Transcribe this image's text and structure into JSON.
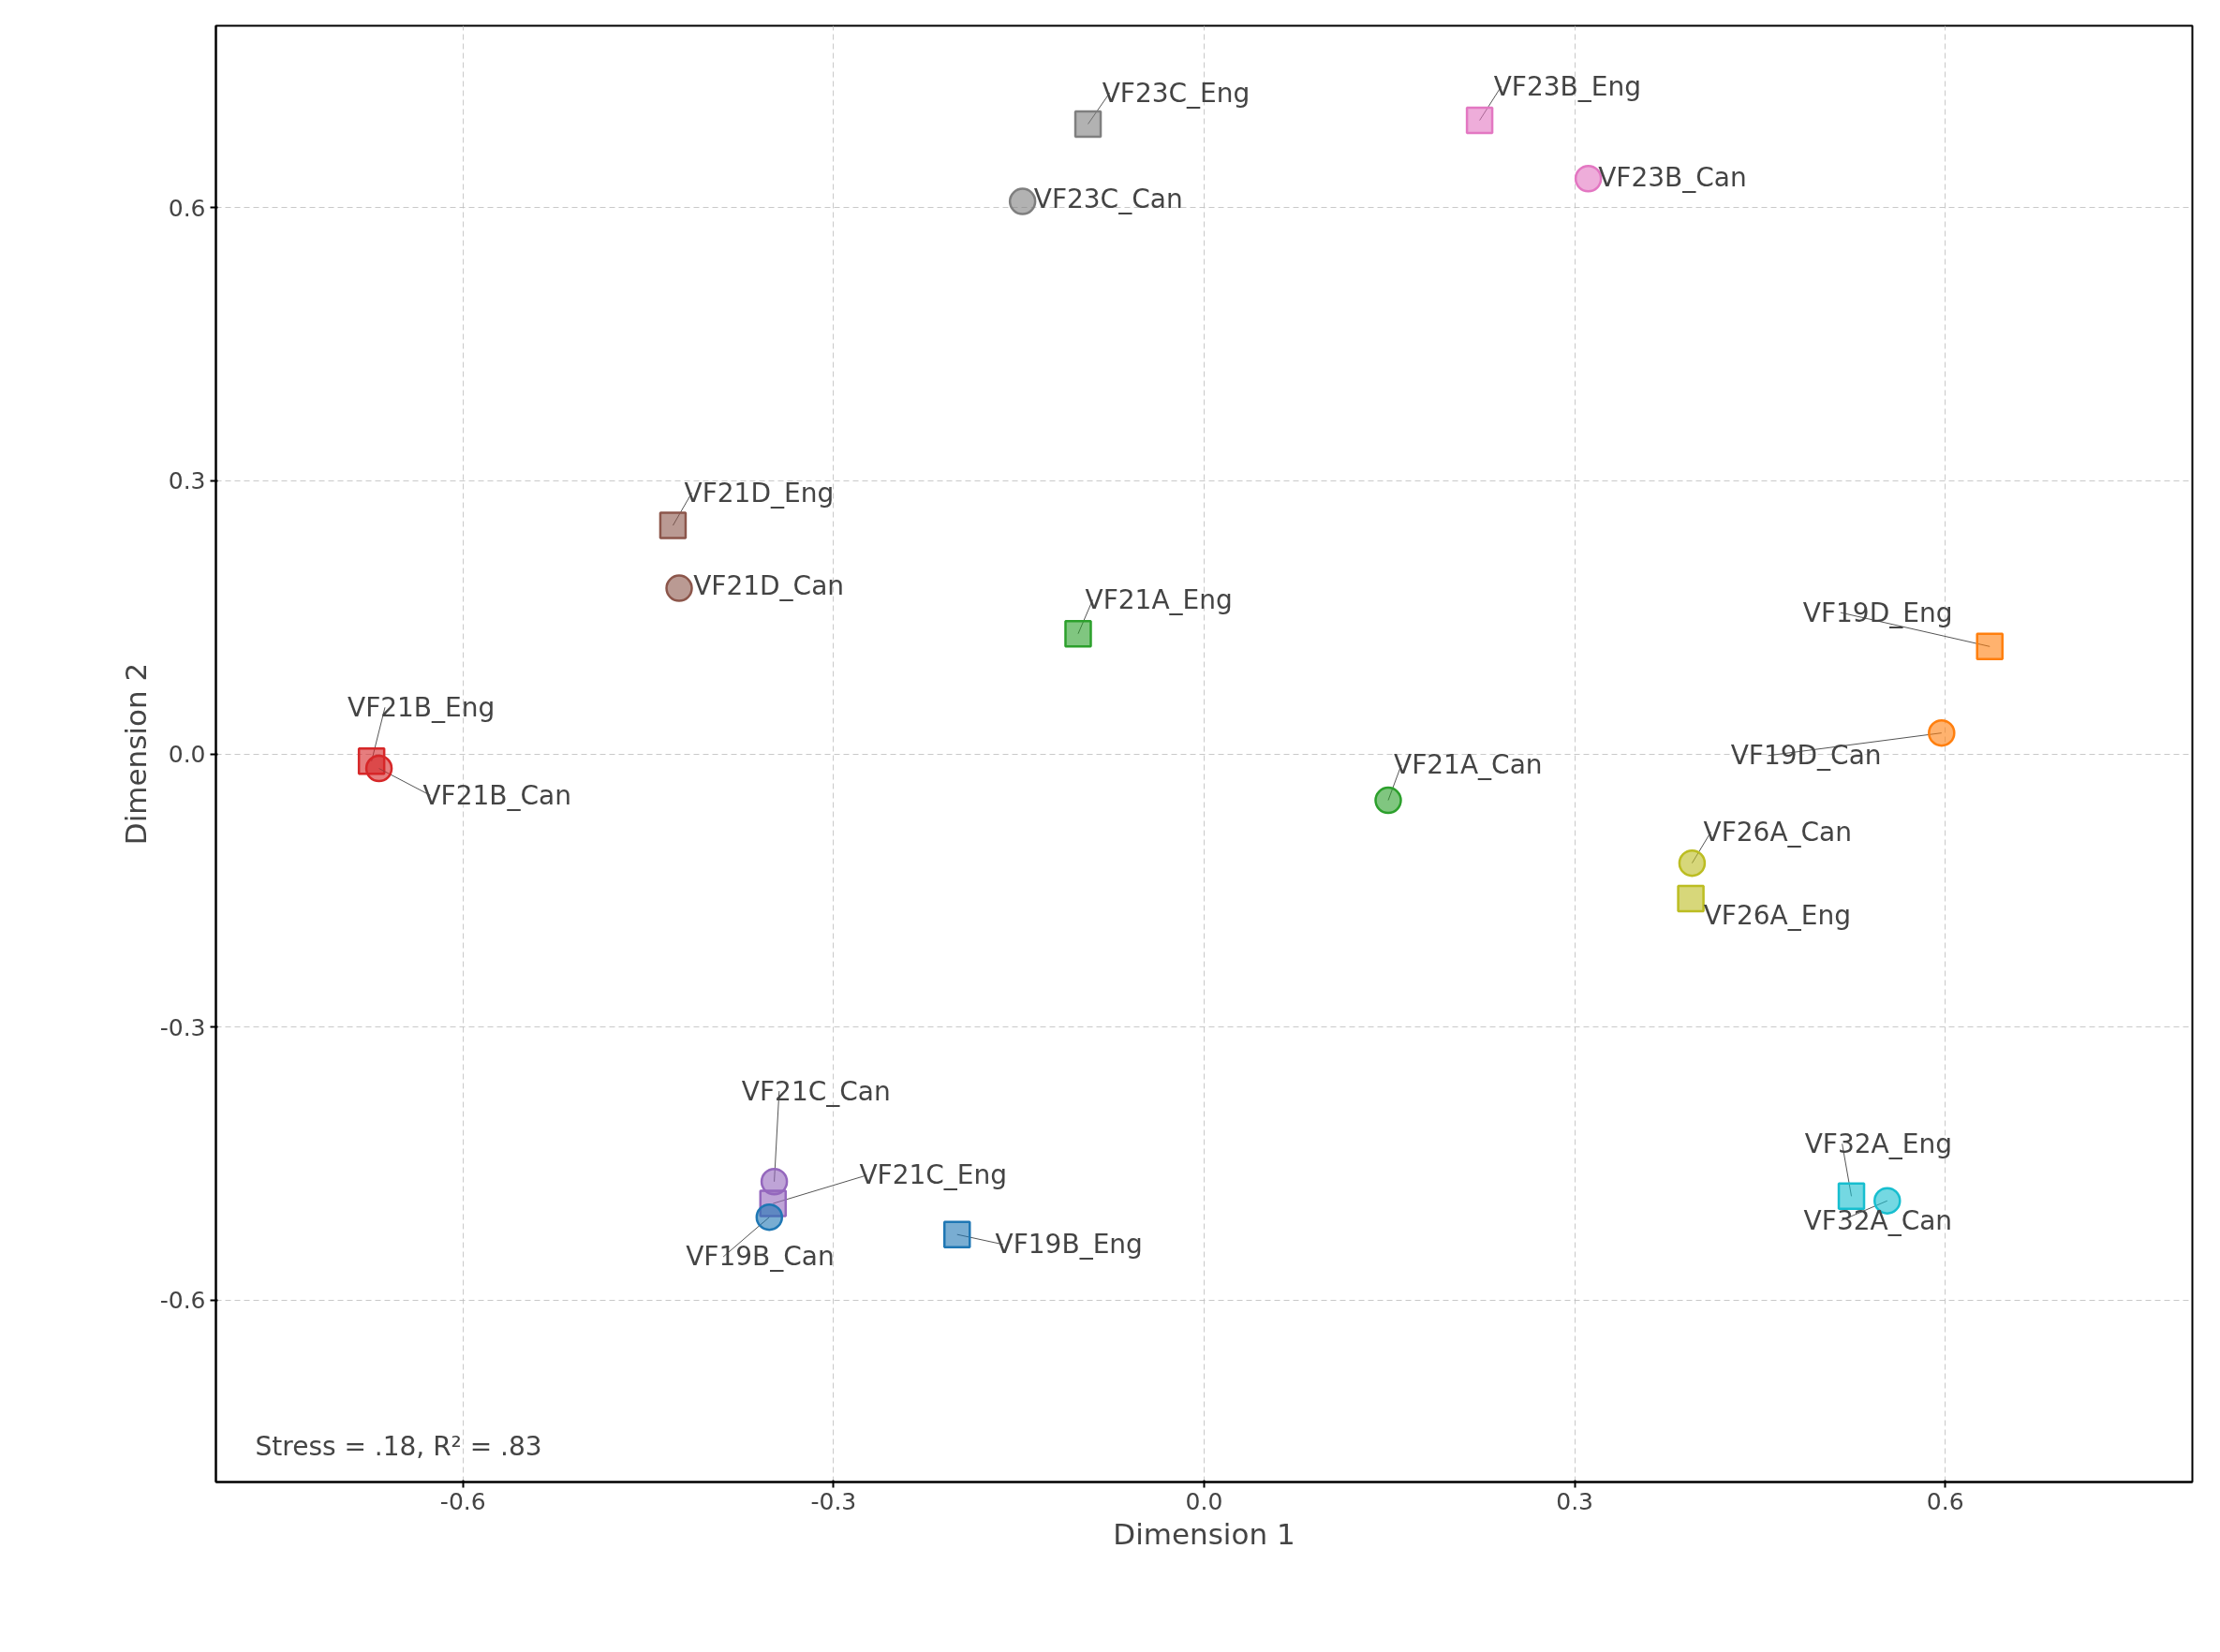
{
  "chart_data": {
    "type": "scatter",
    "xlabel": "Dimension 1",
    "ylabel": "Dimension 2",
    "xlim": [
      -0.8,
      0.8
    ],
    "ylim": [
      -0.8,
      0.8
    ],
    "xticks": [
      -0.6,
      -0.3,
      {
        "value": 0,
        "label": "0.0"
      },
      0.3,
      0.6
    ],
    "yticks": [
      -0.6,
      -0.3,
      {
        "value": 0,
        "label": "0.0"
      },
      0.3,
      0.6
    ],
    "grid": true,
    "annotations": [
      "Stress = .18, R² = .83"
    ],
    "series": [
      {
        "name": "VF23C_Eng",
        "color": "#7f7f7f",
        "marker": "square",
        "x": [
          -0.094
        ],
        "values": [
          0.692
        ]
      },
      {
        "name": "VF23C_Can",
        "color": "#7f7f7f",
        "marker": "circle",
        "x": [
          -0.147
        ],
        "values": [
          0.607
        ]
      },
      {
        "name": "VF23B_Eng",
        "color": "#e377c2",
        "marker": "square",
        "x": [
          0.223
        ],
        "values": [
          0.696
        ]
      },
      {
        "name": "VF23B_Can",
        "color": "#e377c2",
        "marker": "circle",
        "x": [
          0.311
        ],
        "values": [
          0.632
        ]
      },
      {
        "name": "VF21D_Eng",
        "color": "#8c564b",
        "marker": "square",
        "x": [
          -0.43
        ],
        "values": [
          0.251
        ]
      },
      {
        "name": "VF21D_Can",
        "color": "#8c564b",
        "marker": "circle",
        "x": [
          -0.425
        ],
        "values": [
          0.182
        ]
      },
      {
        "name": "VF21A_Eng",
        "color": "#2ca02c",
        "marker": "square",
        "x": [
          -0.102
        ],
        "values": [
          0.132
        ]
      },
      {
        "name": "VF21A_Can",
        "color": "#2ca02c",
        "marker": "circle",
        "x": [
          0.149
        ],
        "values": [
          -0.051
        ]
      },
      {
        "name": "VF19D_Eng",
        "color": "#ff7f0e",
        "marker": "square",
        "x": [
          0.636
        ],
        "values": [
          0.118
        ]
      },
      {
        "name": "VF19D_Can",
        "color": "#ff7f0e",
        "marker": "circle",
        "x": [
          0.597
        ],
        "values": [
          0.023
        ]
      },
      {
        "name": "VF21B_Eng",
        "color": "#d62728",
        "marker": "square",
        "x": [
          -0.674
        ],
        "values": [
          -0.008
        ]
      },
      {
        "name": "VF21B_Can",
        "color": "#d62728",
        "marker": "circle",
        "x": [
          -0.668
        ],
        "values": [
          -0.016
        ]
      },
      {
        "name": "VF26A_Can",
        "color": "#bcbd22",
        "marker": "circle",
        "x": [
          0.395
        ],
        "values": [
          -0.12
        ]
      },
      {
        "name": "VF26A_Eng",
        "color": "#bcbd22",
        "marker": "square",
        "x": [
          0.394
        ],
        "values": [
          -0.159
        ]
      },
      {
        "name": "VF21C_Can",
        "color": "#9467bd",
        "marker": "circle",
        "x": [
          -0.348
        ],
        "values": [
          -0.47
        ]
      },
      {
        "name": "VF21C_Eng",
        "color": "#9467bd",
        "marker": "square",
        "x": [
          -0.349
        ],
        "values": [
          -0.494
        ]
      },
      {
        "name": "VF19B_Can",
        "color": "#1f77b4",
        "marker": "circle",
        "x": [
          -0.352
        ],
        "values": [
          -0.509
        ]
      },
      {
        "name": "VF19B_Eng",
        "color": "#1f77b4",
        "marker": "square",
        "x": [
          -0.2
        ],
        "values": [
          -0.528
        ]
      },
      {
        "name": "VF32A_Eng",
        "color": "#17becf",
        "marker": "square",
        "x": [
          0.524
        ],
        "values": [
          -0.486
        ]
      },
      {
        "name": "VF32A_Can",
        "color": "#17becf",
        "marker": "circle",
        "x": [
          0.553
        ],
        "values": [
          -0.491
        ]
      }
    ]
  }
}
